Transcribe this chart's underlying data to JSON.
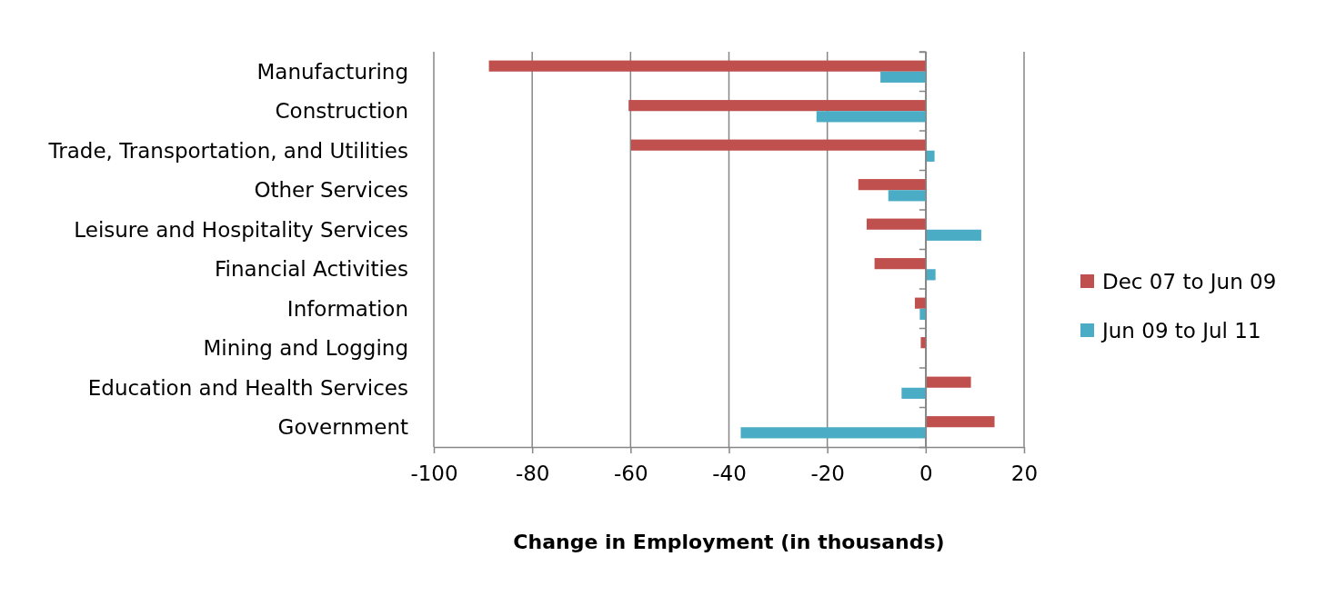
{
  "chart_data": {
    "type": "bar",
    "orientation": "horizontal",
    "xlabel": "Change in Employment (in thousands)",
    "categories": [
      "Manufacturing",
      "Construction",
      "Trade, Transportation, and Utilities",
      "Other Services",
      "Leisure and Hospitality Services",
      "Financial Activities",
      "Information",
      "Mining and Logging",
      "Education and Health Services",
      "Government"
    ],
    "series": [
      {
        "name": "Dec 07 to Jun 09",
        "color": "#c0504d",
        "values": [
          -88.8,
          -60.4,
          -59.9,
          -13.7,
          -12.0,
          -10.4,
          -2.2,
          -1.0,
          9.2,
          14.0
        ]
      },
      {
        "name": "Jun 09 to Jul 11",
        "color": "#4bacc6",
        "values": [
          -9.2,
          -22.2,
          1.8,
          -7.6,
          11.3,
          2.0,
          -1.2,
          0,
          -4.9,
          -37.6
        ]
      }
    ],
    "xlim": [
      -100,
      20
    ],
    "xticks": [
      -100,
      -80,
      -60,
      -40,
      -20,
      0,
      20
    ],
    "grid": "x",
    "legend": "right"
  }
}
